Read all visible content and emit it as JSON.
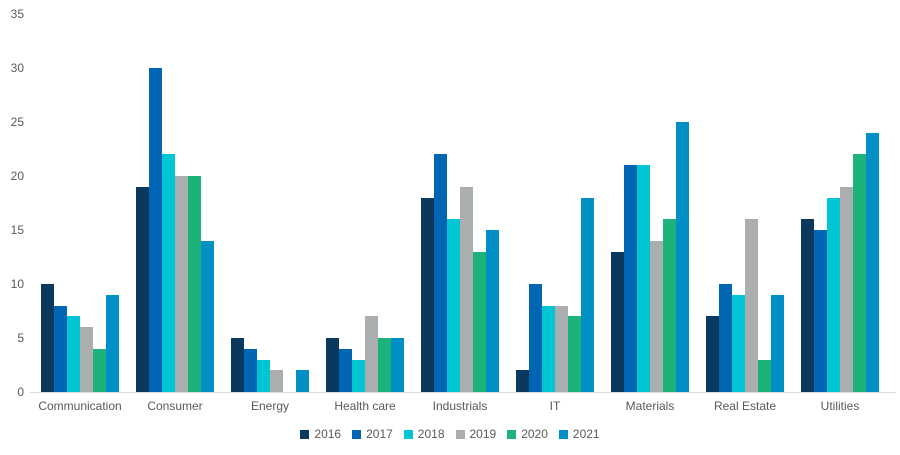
{
  "chart_data": {
    "type": "bar",
    "title": "",
    "categories": [
      "Communication",
      "Consumer",
      "Energy",
      "Health care",
      "Industrials",
      "IT",
      "Materials",
      "Real Estate",
      "Utilities"
    ],
    "series": [
      {
        "name": "2016",
        "color": "#0a395d",
        "values": [
          10,
          19,
          5,
          5,
          18,
          2,
          13,
          7,
          16
        ]
      },
      {
        "name": "2017",
        "color": "#0066b3",
        "values": [
          8,
          30,
          4,
          4,
          22,
          10,
          21,
          10,
          15
        ]
      },
      {
        "name": "2018",
        "color": "#00c5d3",
        "values": [
          7,
          22,
          3,
          3,
          16,
          8,
          21,
          9,
          18
        ]
      },
      {
        "name": "2019",
        "color": "#abaeae",
        "values": [
          6,
          20,
          2,
          7,
          19,
          8,
          14,
          16,
          19
        ]
      },
      {
        "name": "2020",
        "color": "#1eb27b",
        "values": [
          4,
          20,
          0,
          5,
          13,
          7,
          16,
          3,
          22
        ]
      },
      {
        "name": "2021",
        "color": "#0090c6",
        "values": [
          9,
          14,
          2,
          5,
          15,
          18,
          25,
          9,
          24
        ]
      }
    ],
    "xlabel": "",
    "ylabel": "",
    "ylim": [
      0,
      35
    ],
    "yticks": [
      0,
      5,
      10,
      15,
      20,
      25,
      30,
      35
    ],
    "grid": false,
    "legend_position": "bottom",
    "colors": {
      "axis_line": "#d9d9d9",
      "tick_label": "#595959",
      "background": "#ffffff"
    }
  }
}
